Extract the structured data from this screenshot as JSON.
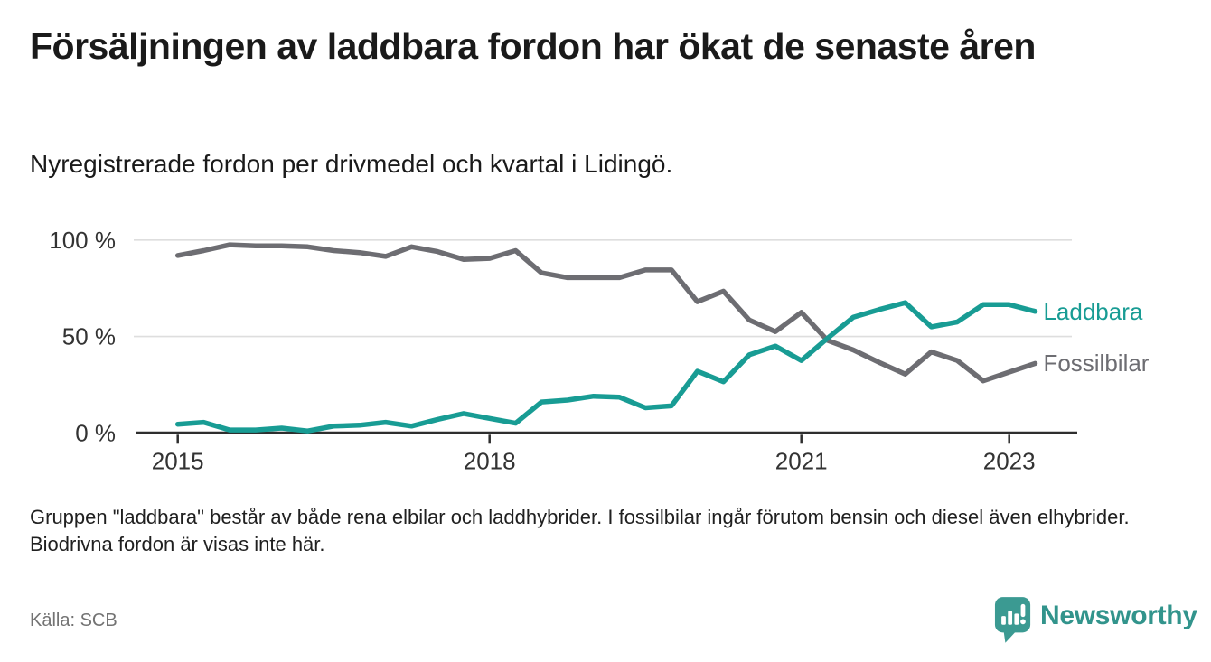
{
  "header": {
    "title": "Försäljningen av laddbara fordon har ökat de senaste åren",
    "subtitle": "Nyregistrerade fordon per drivmedel och kvartal i Lidingö."
  },
  "chart_data": {
    "type": "line",
    "unit": "%",
    "ylim": [
      0,
      100
    ],
    "grid": "horizontal",
    "legend_position": "right-of-line-ends",
    "x": [
      "2015 Q1",
      "2015 Q2",
      "2015 Q3",
      "2015 Q4",
      "2016 Q1",
      "2016 Q2",
      "2016 Q3",
      "2016 Q4",
      "2017 Q1",
      "2017 Q2",
      "2017 Q3",
      "2017 Q4",
      "2018 Q1",
      "2018 Q2",
      "2018 Q3",
      "2018 Q4",
      "2019 Q1",
      "2019 Q2",
      "2019 Q3",
      "2019 Q4",
      "2020 Q1",
      "2020 Q2",
      "2020 Q3",
      "2020 Q4",
      "2021 Q1",
      "2021 Q2",
      "2021 Q3",
      "2021 Q4",
      "2022 Q1",
      "2022 Q2",
      "2022 Q3",
      "2022 Q4",
      "2023 Q1",
      "2023 Q2"
    ],
    "series": [
      {
        "name": "Laddbara",
        "color": "#189C94",
        "values": [
          4.5,
          5.5,
          1.5,
          1.5,
          2.5,
          1,
          3.5,
          4,
          5.5,
          3.5,
          7,
          10,
          7.5,
          5,
          16,
          17,
          19,
          18.5,
          13,
          14,
          32,
          26.5,
          40.5,
          45,
          37.5,
          49,
          60,
          64,
          67.5,
          55,
          57.5,
          66.5,
          66.5,
          63
        ]
      },
      {
        "name": "Fossilbilar",
        "color": "#6D6D72",
        "values": [
          92,
          94.5,
          97.5,
          97,
          97,
          96.5,
          94.5,
          93.5,
          91.5,
          96.5,
          94,
          90,
          90.5,
          94.5,
          83,
          80.5,
          80.5,
          80.5,
          84.5,
          84.5,
          68,
          73.5,
          58.5,
          52.5,
          62.5,
          48,
          43,
          36.5,
          30.5,
          42,
          37.5,
          27,
          31.5,
          36
        ]
      }
    ],
    "y_ticks": [
      {
        "value": 0,
        "label": "0 %"
      },
      {
        "value": 50,
        "label": "50 %"
      },
      {
        "value": 100,
        "label": "100 %"
      }
    ],
    "x_ticks": [
      {
        "index": 0,
        "label": "2015"
      },
      {
        "index": 12,
        "label": "2018"
      },
      {
        "index": 24,
        "label": "2021"
      },
      {
        "index": 32,
        "label": "2023"
      }
    ]
  },
  "footnote": "Gruppen \"laddbara\" består av både rena elbilar och laddhybrider. I fossilbilar ingår förutom bensin och diesel även elhybrider. Biodrivna fordon är visas inte här.",
  "source": "Källa: SCB",
  "branding": {
    "logo_text": "Newsworthy",
    "logo_color": "#3B9A92",
    "logo_icon": "speech-bubble-bar-chart-icon"
  }
}
